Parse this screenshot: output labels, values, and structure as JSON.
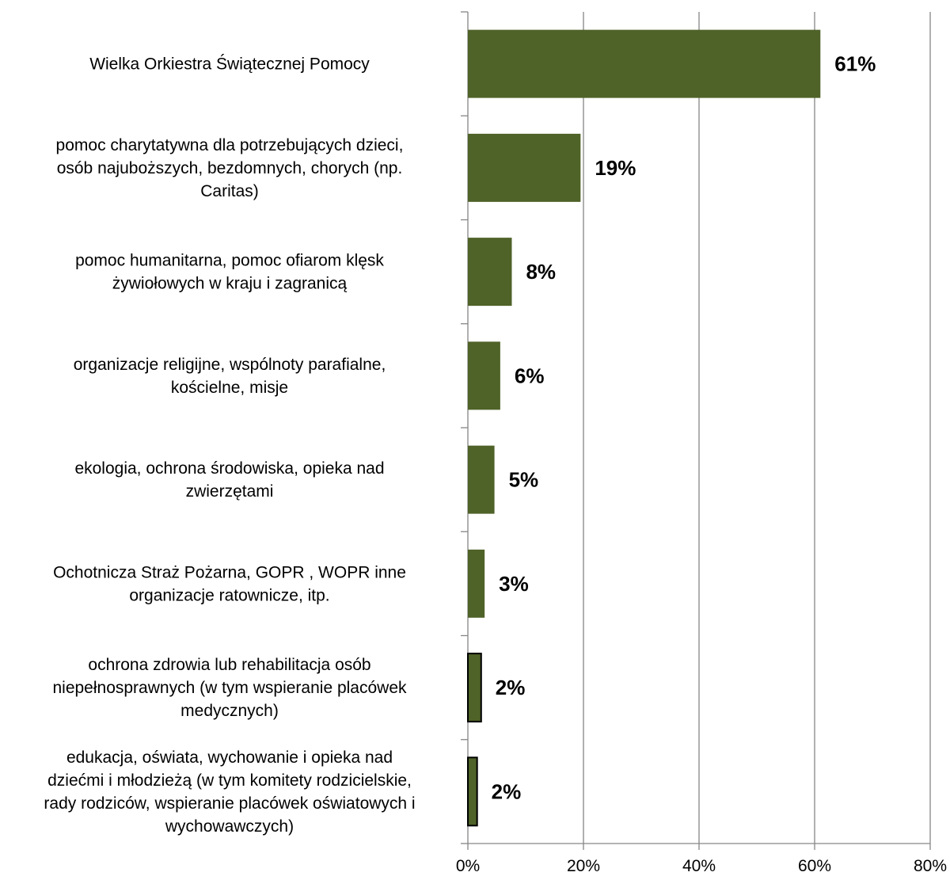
{
  "chart_data": {
    "type": "bar",
    "orientation": "horizontal",
    "categories": [
      [
        "Wielka Orkiestra Świątecznej Pomocy"
      ],
      [
        "pomoc charytatywna dla potrzebujących dzieci,",
        "osób najuboższych, bezdomnych, chorych (np.",
        "Caritas)"
      ],
      [
        "pomoc humanitarna, pomoc ofiarom klęsk",
        "żywiołowych w kraju i zagranicą"
      ],
      [
        "organizacje religijne, wspólnoty parafialne,",
        "kościelne, misje"
      ],
      [
        "ekologia, ochrona środowiska, opieka nad",
        "zwierzętami"
      ],
      [
        "Ochotnicza Straż Pożarna, GOPR , WOPR inne",
        "organizacje ratownicze, itp."
      ],
      [
        "ochrona zdrowia lub rehabilitacja osób",
        "niepełnosprawnych (w tym wspieranie placówek",
        "medycznych)"
      ],
      [
        "edukacja, oświata, wychowanie i opieka nad",
        "dziećmi i młodzieżą (w tym komitety rodzicielskie,",
        "rady rodziców, wspieranie placówek oświatowych i",
        "wychowawczych)"
      ]
    ],
    "values": [
      61,
      19.5,
      7.6,
      5.6,
      4.6,
      2.9,
      2.3,
      1.6
    ],
    "data_labels": [
      "61%",
      "19%",
      "8%",
      "6%",
      "5%",
      "3%",
      "2%",
      "2%"
    ],
    "xlim": [
      0,
      80
    ],
    "x_ticks": [
      "0%",
      "20%",
      "40%",
      "60%",
      "80%"
    ],
    "x_tick_values": [
      0,
      20,
      40,
      60,
      80
    ],
    "grid": true,
    "legend": "none",
    "colors": {
      "bar": "#4f6228",
      "grid": "#868686",
      "axis": "#868686",
      "outlined_bar_border": "#000000"
    },
    "outlined_bars": [
      6,
      7
    ]
  }
}
